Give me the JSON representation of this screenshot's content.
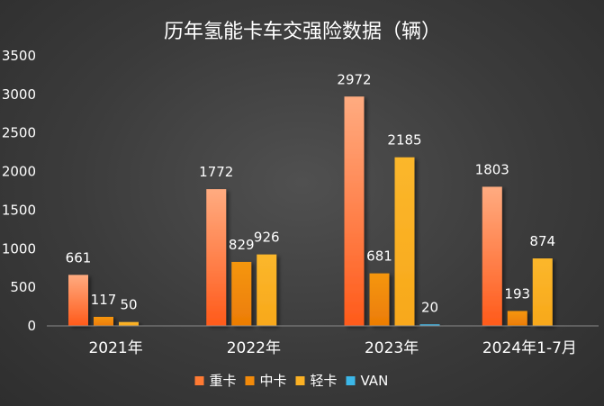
{
  "chart_data": {
    "type": "bar",
    "title": "历年氢能卡车交强险数据（辆）",
    "xlabel": "",
    "ylabel": "",
    "ylim": [
      0,
      3500
    ],
    "yticks": [
      0,
      500,
      1000,
      1500,
      2000,
      2500,
      3000,
      3500
    ],
    "grid": false,
    "legend_position": "bottom",
    "categories": [
      "2021年",
      "2022年",
      "2023年",
      "2024年1-7月"
    ],
    "series": [
      {
        "name": "重卡",
        "color": "#ff7a33",
        "values": [
          661,
          1772,
          2972,
          1803
        ]
      },
      {
        "name": "中卡",
        "color": "#f28a0a",
        "values": [
          117,
          829,
          681,
          193
        ]
      },
      {
        "name": "轻卡",
        "color": "#fbb124",
        "values": [
          50,
          926,
          2185,
          874
        ]
      },
      {
        "name": "VAN",
        "color": "#3cb7e8",
        "values": [
          null,
          null,
          20,
          null
        ]
      }
    ]
  }
}
